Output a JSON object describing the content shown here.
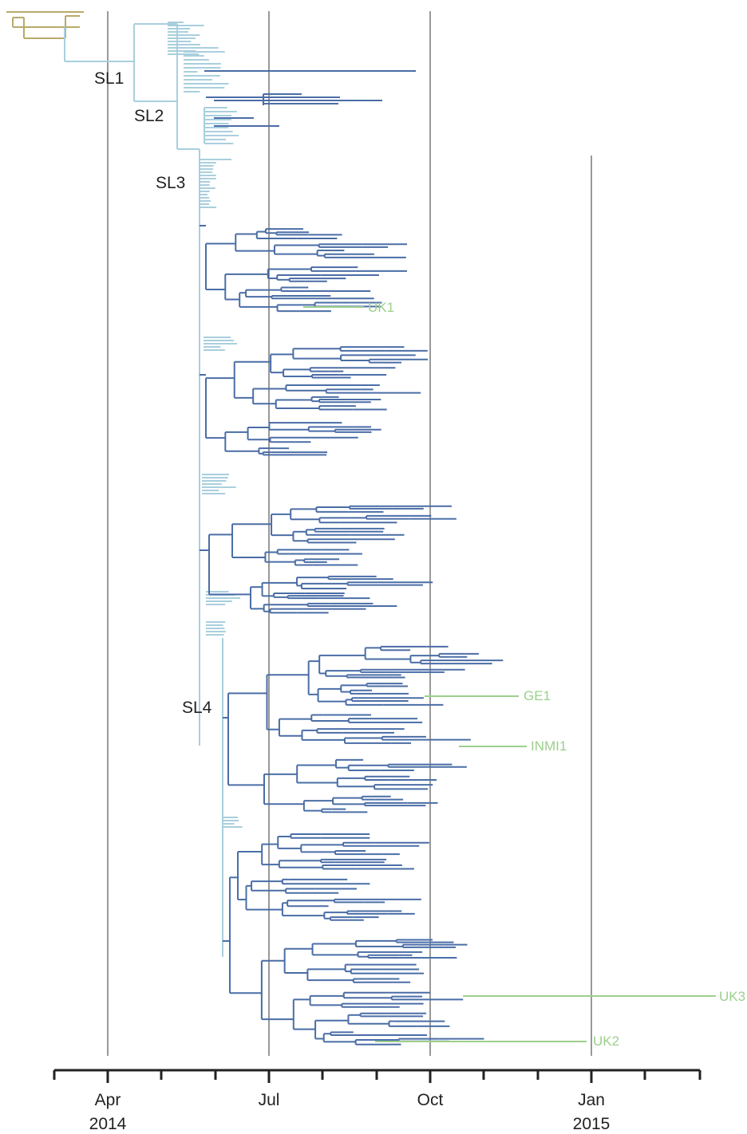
{
  "colors": {
    "outgroup": "#b8aa6a",
    "sl_basal": "#a9cfdd",
    "sl4_clade": "#4a6da6",
    "highlight_tips": "#9ccf8c",
    "axis": "#222222",
    "gridline": "#333333"
  },
  "time_axis": {
    "ticks": [
      {
        "label": "Apr",
        "year": "2014"
      },
      {
        "label": "Jul",
        "year": ""
      },
      {
        "label": "Oct",
        "year": ""
      },
      {
        "label": "Jan",
        "year": "2015"
      }
    ],
    "minor_ticks_per_interval": 3
  },
  "clade_labels": [
    "SL1",
    "SL2",
    "SL3",
    "SL4"
  ],
  "highlight_tips": [
    "UK1",
    "GE1",
    "INMI1",
    "UK3",
    "UK2"
  ]
}
